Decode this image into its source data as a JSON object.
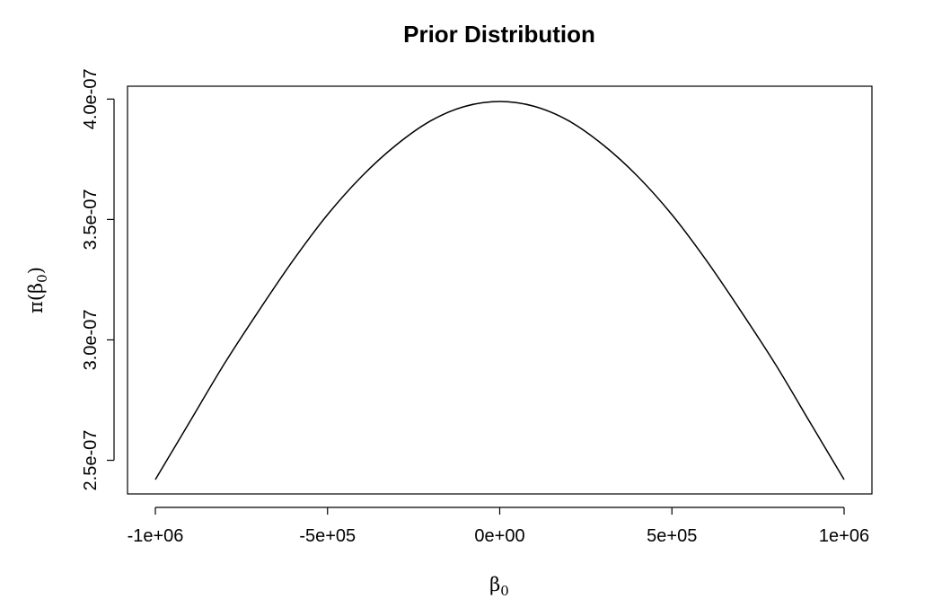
{
  "chart_data": {
    "type": "line",
    "title": "Prior Distribution",
    "xlabel": {
      "base": "β",
      "sub": "0"
    },
    "ylabel": {
      "func": "π(",
      "base": "β",
      "sub": "0",
      "close": ")"
    },
    "xlim": [
      -1000000,
      1000000
    ],
    "ylim": [
      2.42e-07,
      3.99e-07
    ],
    "x_ticks": [
      -1000000,
      -500000,
      0,
      500000,
      1000000
    ],
    "x_tick_labels": [
      "-1e+06",
      "-5e+05",
      "0e+00",
      "5e+05",
      "1e+06"
    ],
    "y_ticks": [
      2.5e-07,
      3e-07,
      3.5e-07,
      4e-07
    ],
    "y_tick_labels": [
      "2.5e-07",
      "3.0e-07",
      "3.5e-07",
      "4.0e-07"
    ],
    "grid": false,
    "legend": "none",
    "line_color": "#000000",
    "series": [
      {
        "x": [
          -1000000,
          -900000,
          -800000,
          -700000,
          -600000,
          -500000,
          -400000,
          -300000,
          -200000,
          -100000,
          0,
          100000,
          200000,
          300000,
          400000,
          500000,
          600000,
          700000,
          800000,
          900000,
          1000000
        ],
        "values": [
          2.42e-07,
          2.66e-07,
          2.9e-07,
          3.12e-07,
          3.33e-07,
          3.52e-07,
          3.68e-07,
          3.81e-07,
          3.91e-07,
          3.97e-07,
          3.99e-07,
          3.97e-07,
          3.91e-07,
          3.81e-07,
          3.68e-07,
          3.52e-07,
          3.33e-07,
          3.12e-07,
          2.9e-07,
          2.66e-07,
          2.42e-07
        ]
      }
    ]
  }
}
